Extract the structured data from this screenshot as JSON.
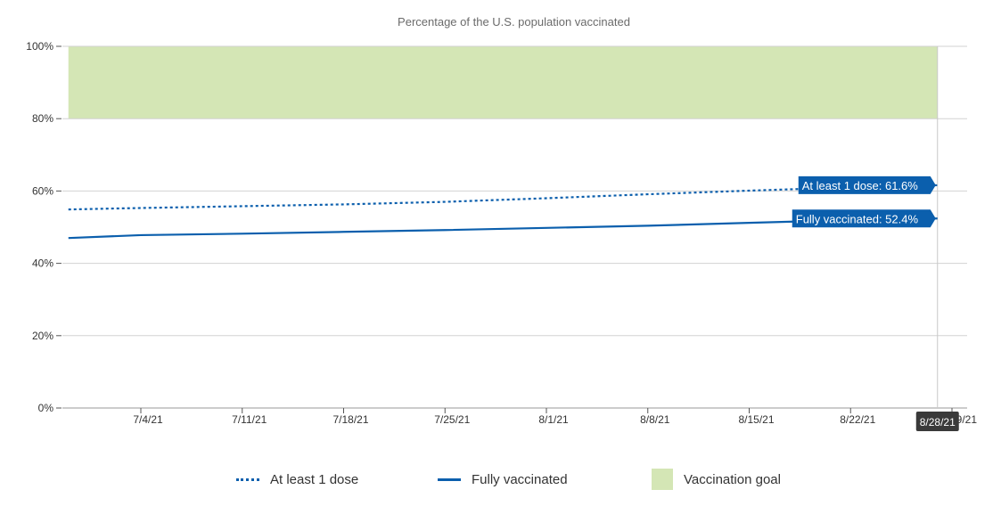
{
  "chart_data": {
    "type": "line",
    "title": "Percentage of the U.S. population vaccinated",
    "xlabel": "",
    "ylabel": "",
    "ylim": [
      0,
      100
    ],
    "y_ticks": [
      "0%",
      "20%",
      "40%",
      "60%",
      "80%",
      "100%"
    ],
    "x_tick_labels": [
      "7/4/21",
      "7/11/21",
      "7/18/21",
      "7/25/21",
      "8/1/21",
      "8/8/21",
      "8/15/21",
      "8/22/21",
      "8/29/21"
    ],
    "goal_band": {
      "name": "Vaccination goal",
      "from": 80,
      "to": 100,
      "color": "#d4e6b5"
    },
    "x": [
      "6/29/21",
      "7/4/21",
      "7/11/21",
      "7/18/21",
      "7/25/21",
      "8/1/21",
      "8/8/21",
      "8/15/21",
      "8/22/21",
      "8/28/21"
    ],
    "series": [
      {
        "name": "At least 1 dose",
        "style": "dotted",
        "color": "#0b5fad",
        "values": [
          54.9,
          55.3,
          55.8,
          56.3,
          57.0,
          58.0,
          59.1,
          60.1,
          61.0,
          61.6
        ],
        "callout": "At least 1 dose: 61.6%"
      },
      {
        "name": "Fully vaccinated",
        "style": "solid",
        "color": "#0b5fad",
        "values": [
          47.0,
          47.8,
          48.2,
          48.7,
          49.2,
          49.8,
          50.4,
          51.2,
          52.0,
          52.4
        ],
        "callout": "Fully vaccinated: 52.4%"
      }
    ],
    "hover_date": "8/28/21",
    "grid": true,
    "legend_position": "bottom"
  }
}
